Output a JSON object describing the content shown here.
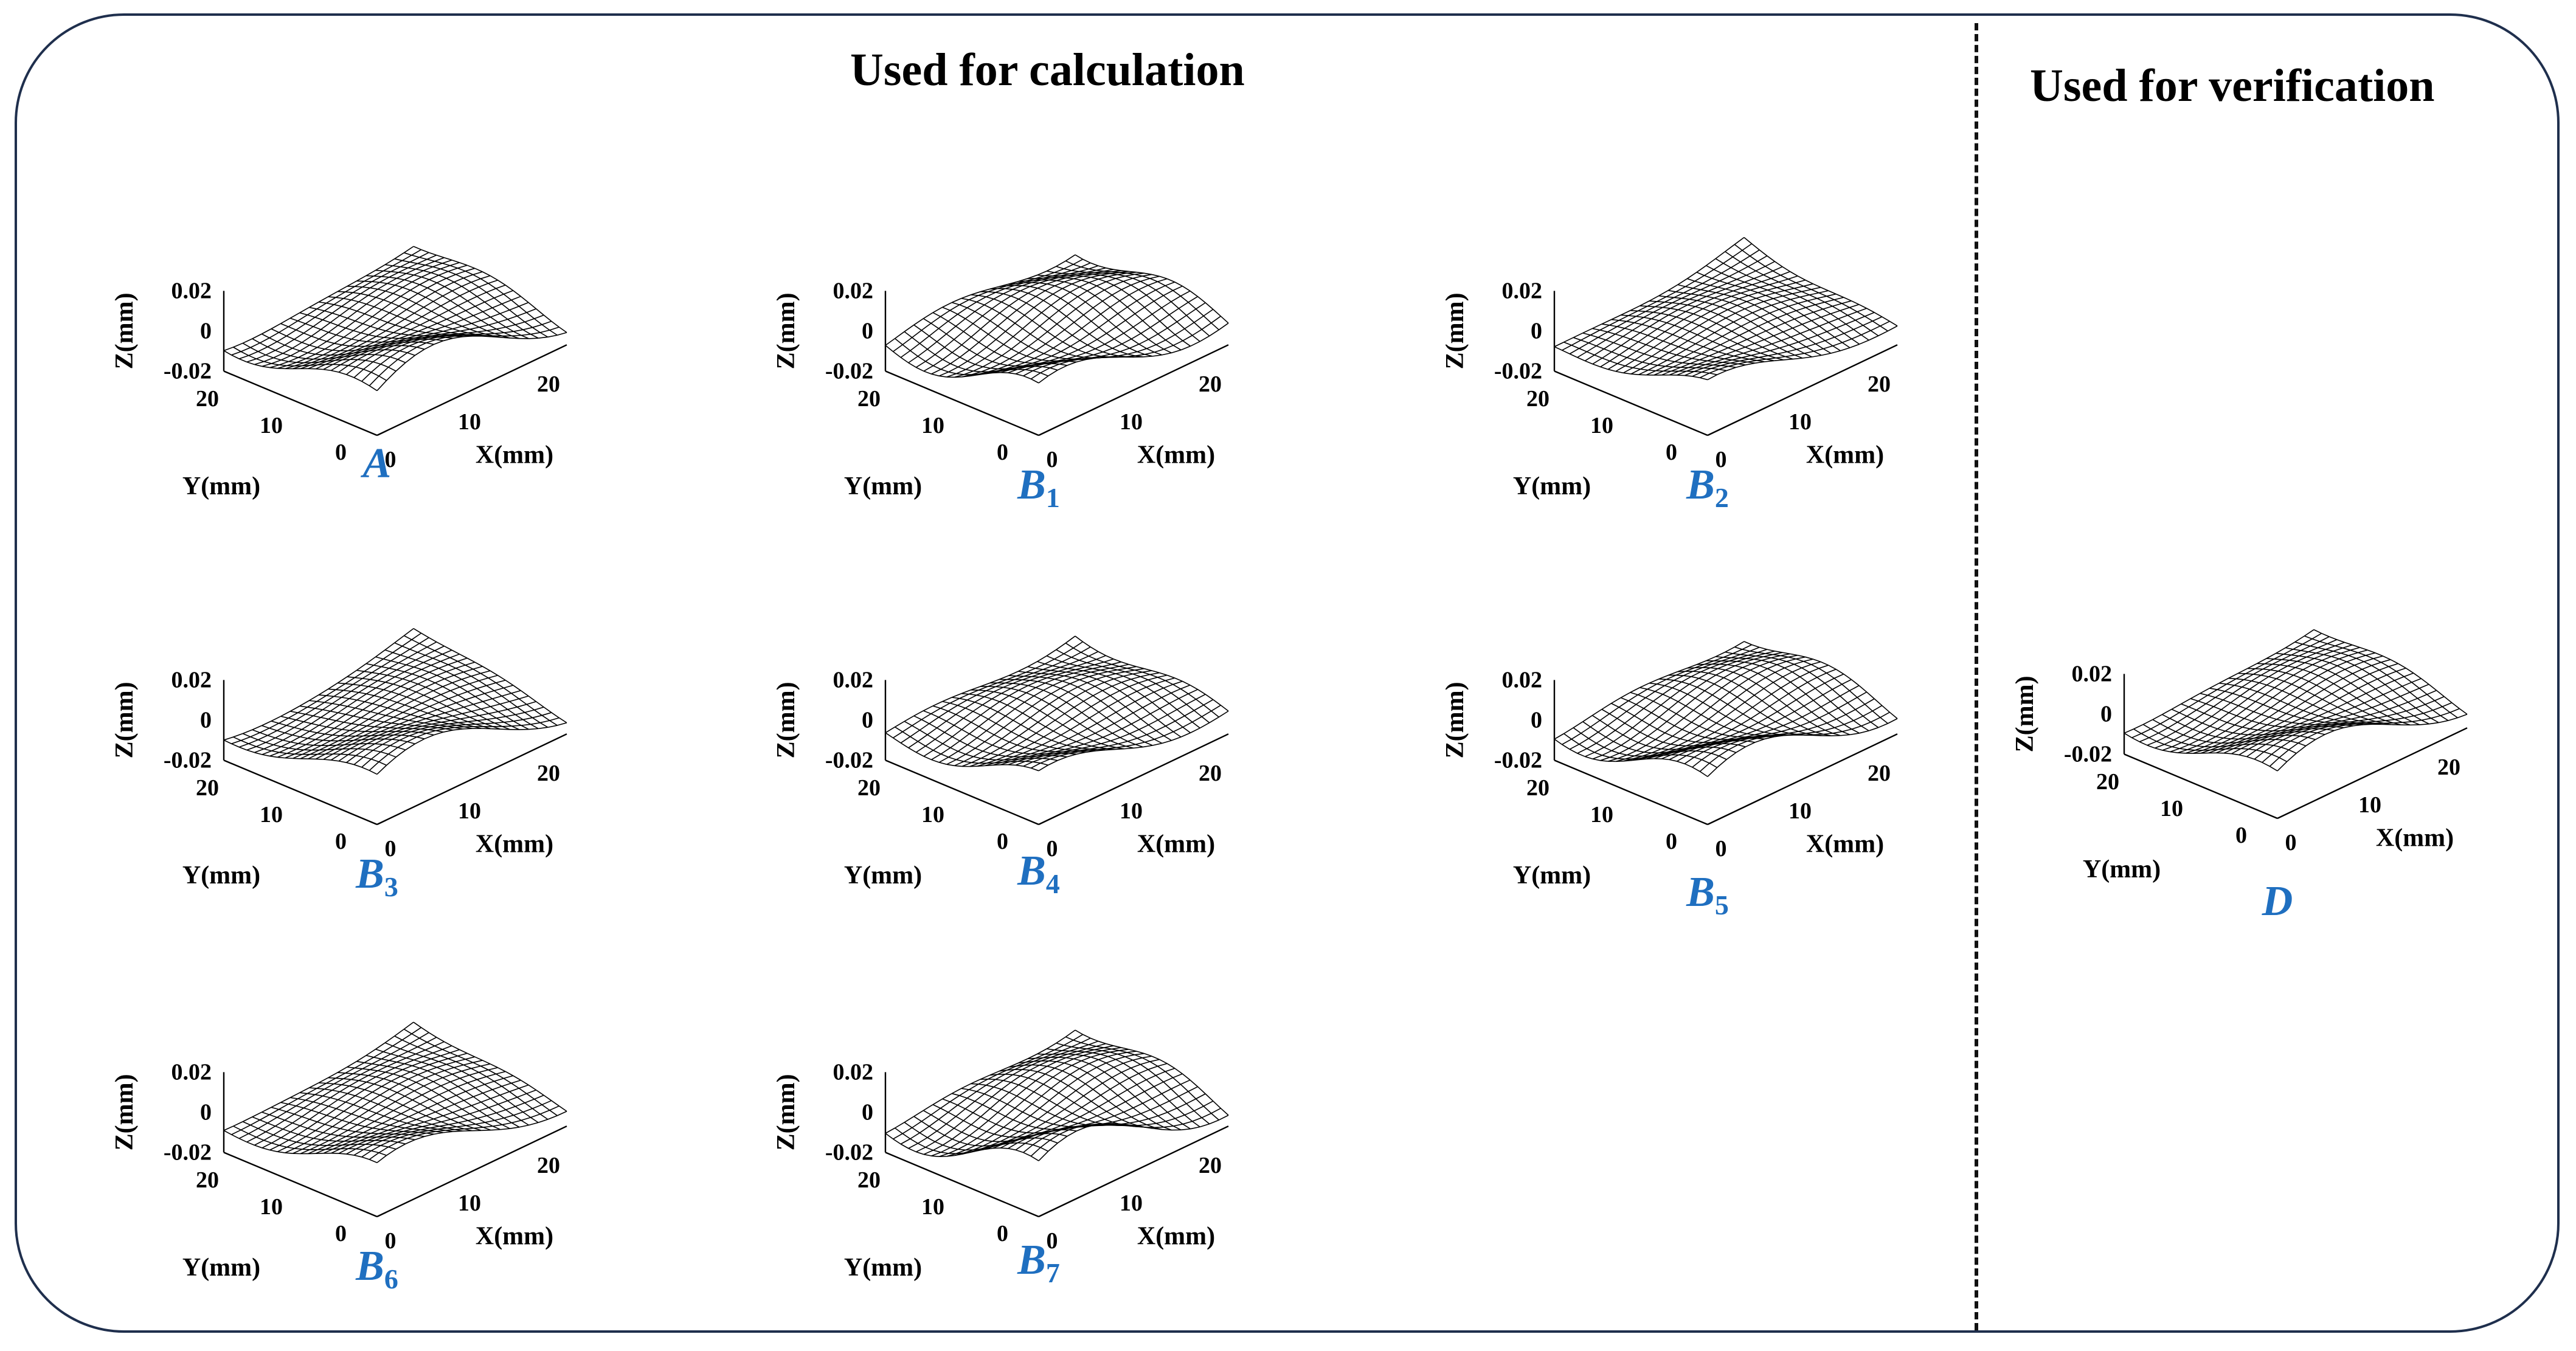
{
  "headings": {
    "calculation": "Used for calculation",
    "verification": "Used for verification"
  },
  "axis": {
    "z_label": "Z(mm)",
    "y_label": "Y(mm)",
    "x_label": "X(mm)",
    "z_ticks": [
      "0.02",
      "0",
      "-0.02"
    ],
    "y_ticks": [
      "20",
      "10",
      "0"
    ],
    "x_ticks": [
      "0",
      "10",
      "20"
    ]
  },
  "colors": {
    "panel_label": "#1f6fc0",
    "frame": "#1f2f4d"
  },
  "panels": [
    {
      "id": "A",
      "label": "A",
      "sub": ""
    },
    {
      "id": "B1",
      "label": "B",
      "sub": "1"
    },
    {
      "id": "B2",
      "label": "B",
      "sub": "2"
    },
    {
      "id": "B3",
      "label": "B",
      "sub": "3"
    },
    {
      "id": "B4",
      "label": "B",
      "sub": "4"
    },
    {
      "id": "B5",
      "label": "B",
      "sub": "5"
    },
    {
      "id": "B6",
      "label": "B",
      "sub": "6"
    },
    {
      "id": "B7",
      "label": "B",
      "sub": "7"
    },
    {
      "id": "D",
      "label": "D",
      "sub": ""
    }
  ]
}
